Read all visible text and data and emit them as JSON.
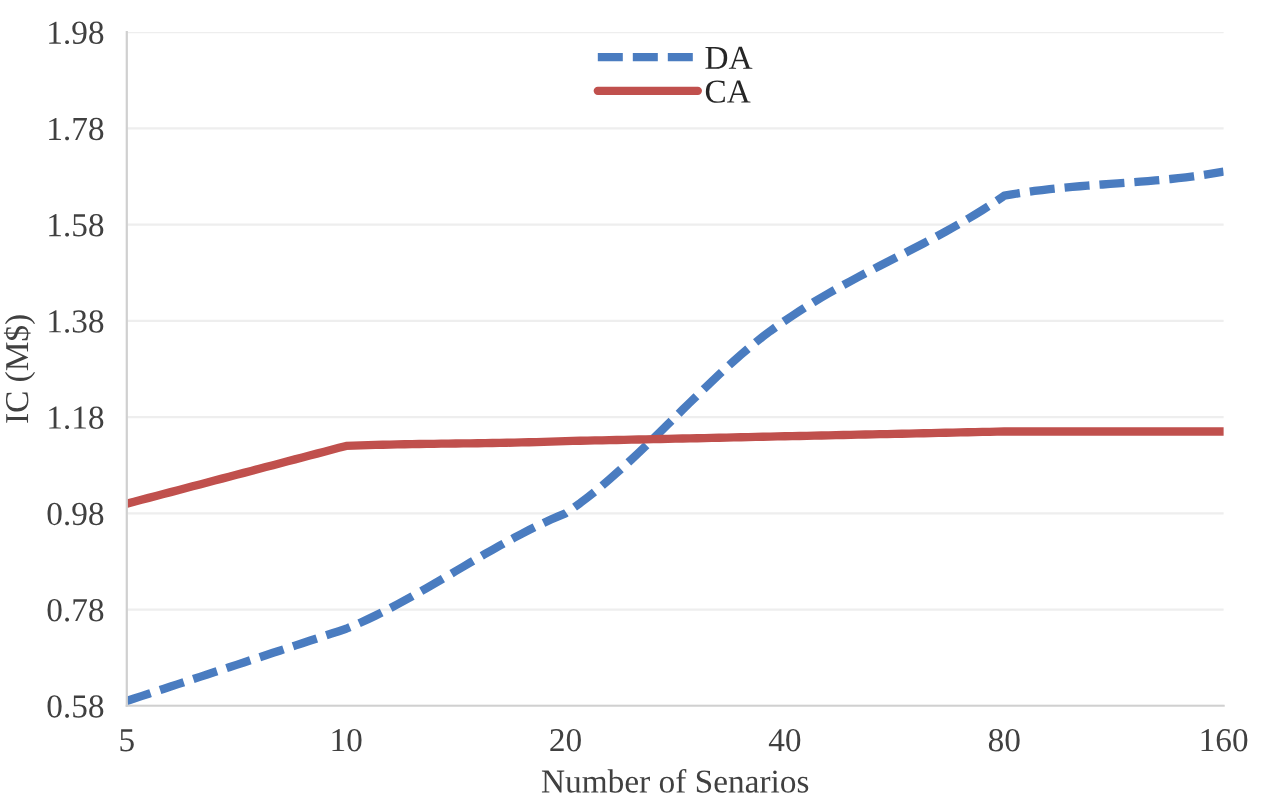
{
  "chart_data": {
    "type": "line",
    "xlabel": "Number of Senarios",
    "ylabel": "IC (M$)",
    "categories": [
      "5",
      "10",
      "20",
      "40",
      "80",
      "160"
    ],
    "series": [
      {
        "name": "DA",
        "color": "#4a7cc0",
        "line_style": "dashed",
        "values": [
          0.59,
          0.74,
          0.98,
          1.38,
          1.64,
          1.69
        ]
      },
      {
        "name": "CA",
        "color": "#c0504d",
        "line_style": "solid",
        "values": [
          1.0,
          1.12,
          1.13,
          1.14,
          1.15,
          1.15
        ]
      }
    ],
    "ylim": [
      0.58,
      1.98
    ],
    "yticks": [
      0.58,
      0.78,
      0.98,
      1.18,
      1.38,
      1.58,
      1.78,
      1.98
    ],
    "grid": "y",
    "legend": "top",
    "marker": "none"
  }
}
